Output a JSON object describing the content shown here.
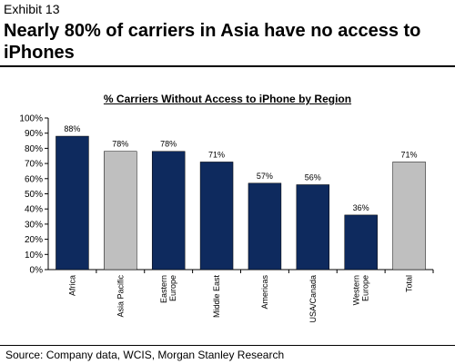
{
  "header": {
    "exhibit": "Exhibit 13",
    "headline": "Nearly 80% of carriers in Asia have no access to iPhones"
  },
  "footer": {
    "source": "Source: Company data, WCIS, Morgan Stanley Research"
  },
  "colors": {
    "primary_bar": "#0e2a5e",
    "highlight_bar": "#bfbfbf"
  },
  "chart_data": {
    "type": "bar",
    "title": "% Carriers Without Access to iPhone by Region",
    "xlabel": "",
    "ylabel": "",
    "categories": [
      [
        "Africa"
      ],
      [
        "Asia Pacific"
      ],
      [
        "Eastern",
        "Europe"
      ],
      [
        "Middle East"
      ],
      [
        "Americas"
      ],
      [
        "USA/Canada"
      ],
      [
        "Western",
        "Europe"
      ],
      [
        "Total"
      ]
    ],
    "values": [
      88,
      78,
      78,
      71,
      57,
      56,
      36,
      71
    ],
    "value_labels": [
      "88%",
      "78%",
      "78%",
      "71%",
      "57%",
      "56%",
      "36%",
      "71%"
    ],
    "bar_colors": [
      "#0e2a5e",
      "#bfbfbf",
      "#0e2a5e",
      "#0e2a5e",
      "#0e2a5e",
      "#0e2a5e",
      "#0e2a5e",
      "#bfbfbf"
    ],
    "ylim": [
      0,
      100
    ],
    "yticks": [
      "0%",
      "10%",
      "20%",
      "30%",
      "40%",
      "50%",
      "60%",
      "70%",
      "80%",
      "90%",
      "100%"
    ],
    "grid": false,
    "legend": "none"
  }
}
